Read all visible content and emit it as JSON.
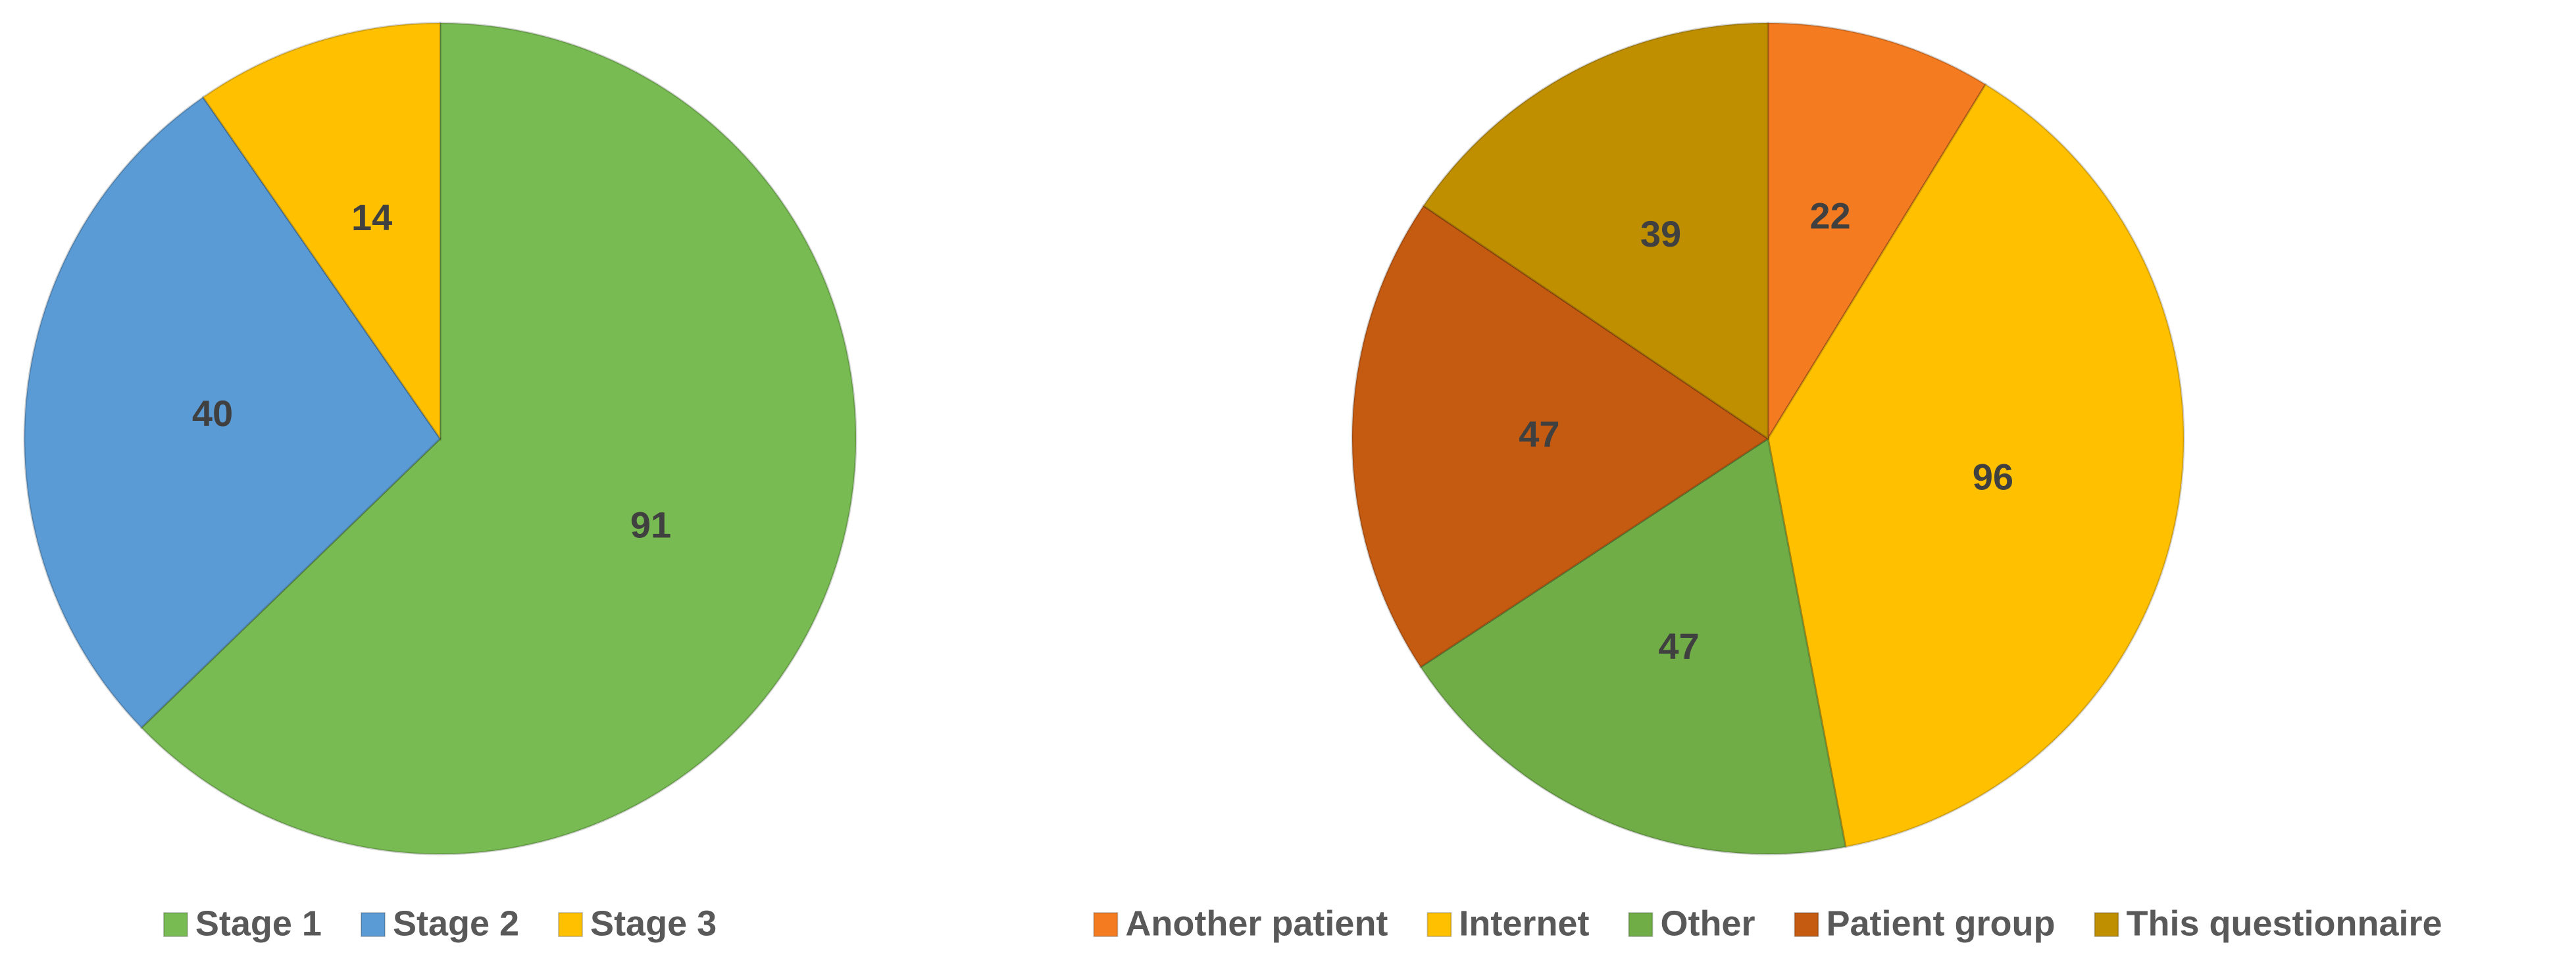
{
  "chart_data": [
    {
      "type": "pie",
      "categories": [
        "Stage 1",
        "Stage 2",
        "Stage 3"
      ],
      "values": [
        91,
        40,
        14
      ],
      "colors": [
        "#78bb52",
        "#5b9bd5",
        "#ffc000"
      ]
    },
    {
      "type": "pie",
      "categories": [
        "Another patient",
        "Internet",
        "Other",
        "Patient group",
        "This questionnaire"
      ],
      "values": [
        22,
        96,
        47,
        47,
        39
      ],
      "colors": [
        "#f47b20",
        "#ffc000",
        "#70ad47",
        "#c55a11",
        "#bf8f00"
      ]
    }
  ]
}
